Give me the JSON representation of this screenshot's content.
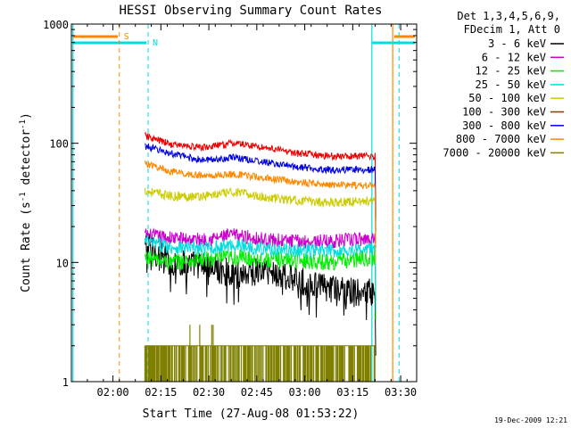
{
  "chart_data": {
    "type": "line",
    "title": "HESSI Observing Summary Count Rates",
    "xlabel": "Start Time (27-Aug-08 01:53:22)",
    "ylabel_parts": [
      "Count Rate (s",
      "-1",
      " detector",
      "-1",
      ")"
    ],
    "yscale": "log",
    "ylim": [
      1,
      1000
    ],
    "xlim_min": [
      -6,
      102
    ],
    "x_ticks": [
      {
        "m": 7,
        "label": "02:00"
      },
      {
        "m": 22,
        "label": "02:15"
      },
      {
        "m": 37,
        "label": "02:30"
      },
      {
        "m": 52,
        "label": "02:45"
      },
      {
        "m": 67,
        "label": "03:00"
      },
      {
        "m": 82,
        "label": "03:15"
      },
      {
        "m": 97,
        "label": "03:30"
      }
    ],
    "y_ticks": [
      {
        "v": 1,
        "label": "1"
      },
      {
        "v": 10,
        "label": "10"
      },
      {
        "v": 100,
        "label": "100"
      },
      {
        "v": 1000,
        "label": "1000"
      }
    ],
    "legend_header": [
      "Det 1,3,4,5,6,9,",
      "FDecim 1, Att 0"
    ],
    "series": [
      {
        "name": "3 - 6 keV",
        "color": "#000000",
        "points": [
          [
            17,
            14
          ],
          [
            25,
            10
          ],
          [
            35,
            9.5
          ],
          [
            45,
            8
          ],
          [
            55,
            8.5
          ],
          [
            65,
            7
          ],
          [
            75,
            6
          ],
          [
            89,
            5.5
          ]
        ]
      },
      {
        "name": "6 - 12 keV",
        "color": "#cc00cc",
        "points": [
          [
            17,
            17
          ],
          [
            25,
            16
          ],
          [
            35,
            15.5
          ],
          [
            45,
            17
          ],
          [
            55,
            15.5
          ],
          [
            65,
            15
          ],
          [
            75,
            15
          ],
          [
            89,
            16
          ]
        ]
      },
      {
        "name": "12 - 25 keV",
        "color": "#00ee00",
        "points": [
          [
            17,
            11
          ],
          [
            25,
            10
          ],
          [
            35,
            10.5
          ],
          [
            45,
            11
          ],
          [
            55,
            10.5
          ],
          [
            65,
            10.5
          ],
          [
            75,
            10
          ],
          [
            89,
            11
          ]
        ]
      },
      {
        "name": "25 - 50 keV",
        "color": "#00dddd",
        "points": [
          [
            17,
            15
          ],
          [
            25,
            13.5
          ],
          [
            35,
            13
          ],
          [
            45,
            14
          ],
          [
            55,
            13
          ],
          [
            65,
            12.5
          ],
          [
            75,
            12.5
          ],
          [
            89,
            13
          ]
        ]
      },
      {
        "name": "50 - 100 keV",
        "color": "#cccc00",
        "points": [
          [
            17,
            40
          ],
          [
            25,
            36
          ],
          [
            35,
            36
          ],
          [
            45,
            39
          ],
          [
            55,
            35
          ],
          [
            65,
            33
          ],
          [
            75,
            32
          ],
          [
            89,
            33
          ]
        ]
      },
      {
        "name": "100 - 300 keV",
        "color": "#ee0000",
        "points": [
          [
            17,
            115
          ],
          [
            25,
            98
          ],
          [
            35,
            92
          ],
          [
            45,
            100
          ],
          [
            55,
            92
          ],
          [
            65,
            82
          ],
          [
            75,
            78
          ],
          [
            89,
            78
          ]
        ]
      },
      {
        "name": "300 - 800 keV",
        "color": "#0000dd",
        "points": [
          [
            17,
            95
          ],
          [
            25,
            82
          ],
          [
            35,
            72
          ],
          [
            45,
            76
          ],
          [
            55,
            69
          ],
          [
            65,
            63
          ],
          [
            75,
            60
          ],
          [
            89,
            60
          ]
        ]
      },
      {
        "name": "800 - 7000 keV",
        "color": "#ff8800",
        "points": [
          [
            17,
            68
          ],
          [
            25,
            58
          ],
          [
            35,
            53
          ],
          [
            45,
            55
          ],
          [
            55,
            51
          ],
          [
            65,
            47
          ],
          [
            75,
            45
          ],
          [
            89,
            44
          ]
        ]
      },
      {
        "name": "7000 - 20000 keV",
        "color": "#808000",
        "points": [
          [
            17,
            2
          ],
          [
            25,
            1.6
          ],
          [
            35,
            2
          ],
          [
            45,
            2
          ],
          [
            55,
            2
          ],
          [
            65,
            2
          ],
          [
            75,
            2
          ],
          [
            89,
            2
          ]
        ]
      }
    ],
    "markers": [
      {
        "label": "S",
        "m": 9,
        "color": "#ff8800",
        "dashed": true
      },
      {
        "label": "N",
        "m": 18,
        "color": "#00dddd",
        "dashed": true
      }
    ],
    "timestamp": "19-Dec-2009 12:21"
  }
}
